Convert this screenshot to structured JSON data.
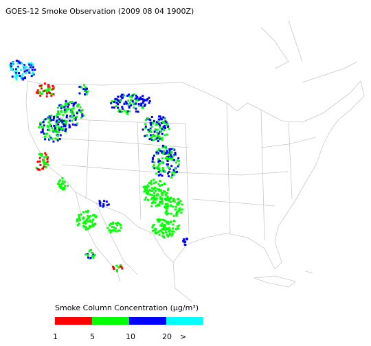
{
  "title": "GOES-12 Smoke Observation (2009 08 04  1900Z)",
  "legend": {
    "title": "Smoke Column Concentration (μg/m³)",
    "colors": [
      "#ff0000",
      "#00ff00",
      "#0000ff",
      "#00ffff"
    ],
    "labels": [
      "1",
      "5",
      "10",
      "20",
      ">"
    ]
  }
}
